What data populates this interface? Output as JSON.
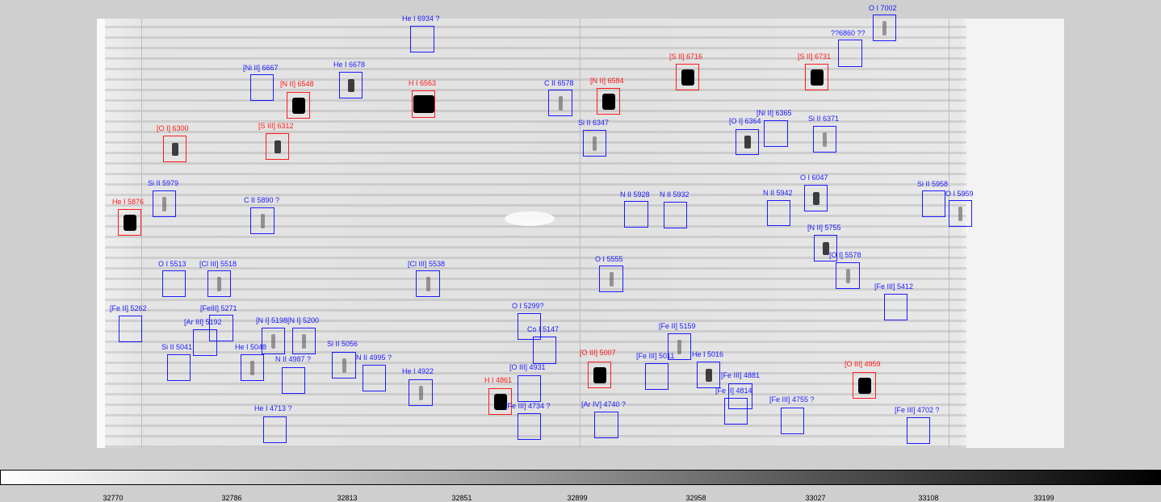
{
  "lines": [
    {
      "label": "O I 7002",
      "color": "blue"
    },
    {
      "label": "He I 6934 ?",
      "color": "blue"
    },
    {
      "label": "??6860 ??",
      "color": "blue"
    },
    {
      "label": "[S II] 6716",
      "color": "red"
    },
    {
      "label": "[S II] 6731",
      "color": "red"
    },
    {
      "label": "[Ni II] 6667",
      "color": "blue"
    },
    {
      "label": "He I 6678",
      "color": "blue"
    },
    {
      "label": "[N II] 6548",
      "color": "red"
    },
    {
      "label": "H I 6563",
      "color": "red"
    },
    {
      "label": "C II 6578",
      "color": "blue"
    },
    {
      "label": "[N II] 6584",
      "color": "red"
    },
    {
      "label": "[O I] 6300",
      "color": "red"
    },
    {
      "label": "[S III] 6312",
      "color": "red"
    },
    {
      "label": "Si II 6347",
      "color": "blue"
    },
    {
      "label": "[Ni II] 6365",
      "color": "blue"
    },
    {
      "label": "[O I] 6364",
      "color": "blue"
    },
    {
      "label": "Si II 6371",
      "color": "blue"
    },
    {
      "label": "Si II 5979",
      "color": "blue"
    },
    {
      "label": "He I 5876",
      "color": "red"
    },
    {
      "label": "C II 5890 ?",
      "color": "blue"
    },
    {
      "label": "N II 5928",
      "color": "blue"
    },
    {
      "label": "N II 5932",
      "color": "blue"
    },
    {
      "label": "N II 5942",
      "color": "blue"
    },
    {
      "label": "O I 6047",
      "color": "blue"
    },
    {
      "label": "Si II 5958",
      "color": "blue"
    },
    {
      "label": "O I 5959",
      "color": "blue"
    },
    {
      "label": "[N II] 5755",
      "color": "blue"
    },
    {
      "label": "[O I] 5578",
      "color": "blue"
    },
    {
      "label": "O I 5513",
      "color": "blue"
    },
    {
      "label": "[Cl III] 5518",
      "color": "blue"
    },
    {
      "label": "[Cl III] 5538",
      "color": "blue"
    },
    {
      "label": "O I 5555",
      "color": "blue"
    },
    {
      "label": "[Fe III] 5412",
      "color": "blue"
    },
    {
      "label": "[Fe II] 5262",
      "color": "blue"
    },
    {
      "label": "[FeIII] 5271",
      "color": "blue"
    },
    {
      "label": "[Ar III] 5192",
      "color": "blue"
    },
    {
      "label": "[N I] 5198",
      "color": "blue"
    },
    {
      "label": "[N I] 5200",
      "color": "blue"
    },
    {
      "label": "O I 5299?",
      "color": "blue"
    },
    {
      "label": "Co I 5147",
      "color": "blue"
    },
    {
      "label": "[Fe II] 5159",
      "color": "blue"
    },
    {
      "label": "Si II 5041",
      "color": "blue"
    },
    {
      "label": "He I 5048",
      "color": "blue"
    },
    {
      "label": "N II 4987 ?",
      "color": "blue"
    },
    {
      "label": "Si II 5056",
      "color": "blue"
    },
    {
      "label": "N II 4995 ?",
      "color": "blue"
    },
    {
      "label": "[O III] 4931",
      "color": "blue"
    },
    {
      "label": "[O III] 5007",
      "color": "red"
    },
    {
      "label": "[Fe III] 5011",
      "color": "blue"
    },
    {
      "label": "He I 5016",
      "color": "blue"
    },
    {
      "label": "[Fe III] 4881",
      "color": "blue"
    },
    {
      "label": "[O III] 4959",
      "color": "red"
    },
    {
      "label": "He I 4922",
      "color": "blue"
    },
    {
      "label": "H I 4861",
      "color": "red"
    },
    {
      "label": "[Fe II] 4814",
      "color": "blue"
    },
    {
      "label": "[Fe III] 4734 ?",
      "color": "blue"
    },
    {
      "label": "[Ar IV] 4740 ?",
      "color": "blue"
    },
    {
      "label": "[Fe III] 4755 ?",
      "color": "blue"
    },
    {
      "label": "He I 4713 ?",
      "color": "blue"
    },
    {
      "label": "[Fe III] 4702 ?",
      "color": "blue"
    }
  ],
  "colorbar": {
    "ticks": [
      "32770",
      "32786",
      "32813",
      "32851",
      "32899",
      "32958",
      "33027",
      "33108",
      "33199"
    ]
  },
  "colors": {
    "strong": "#ff1a1a",
    "weak": "#1a1aff"
  }
}
